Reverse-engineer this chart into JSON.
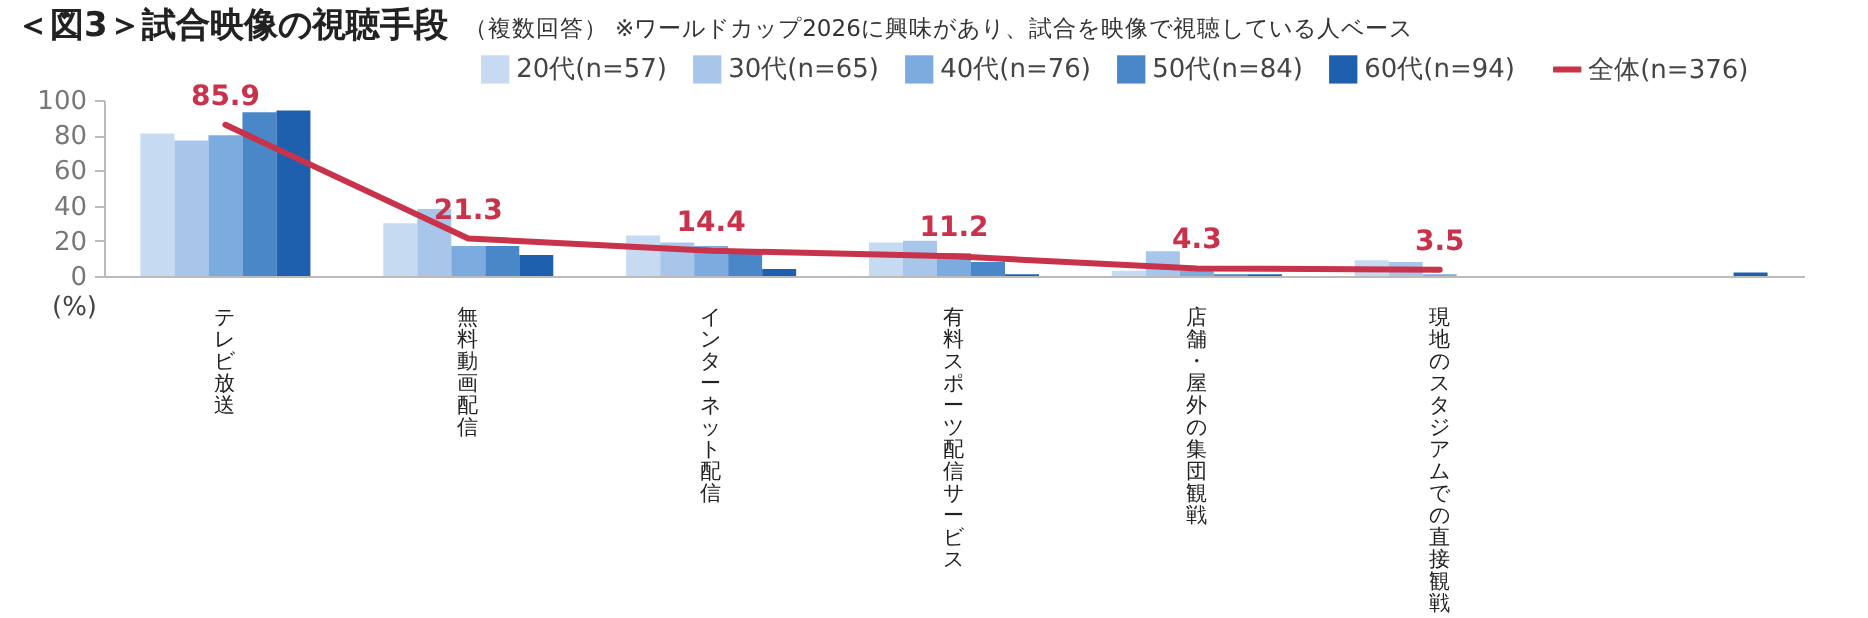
{
  "chart_data": {
    "type": "bar",
    "title": "＜図3＞試合映像の視聴手段",
    "subtitle": "（複数回答） ※ワールドカップ2026に興味があり、試合を映像で視聴している人ベース",
    "ylabel": "(%)",
    "categories": [
      "テレビ放送",
      "無料動画配信",
      "インターネット配信",
      "有料スポーツ配信サービス",
      "店舗・屋外の集団観戦",
      "現地のスタジアムでの直接観戦",
      null
    ],
    "series": [
      {
        "name": "20代(n=57)",
        "color": "#c6daf2",
        "values": [
          81,
          30,
          23,
          19,
          3,
          9,
          0
        ]
      },
      {
        "name": "30代(n=65)",
        "color": "#a8c5ea",
        "values": [
          77,
          38,
          19,
          20,
          14,
          8,
          0
        ]
      },
      {
        "name": "40代(n=76)",
        "color": "#7cacdf",
        "values": [
          80,
          17,
          17,
          13,
          3,
          1,
          0
        ]
      },
      {
        "name": "50代(n=84)",
        "color": "#4a87c9",
        "values": [
          93,
          17,
          14,
          8,
          1,
          0,
          0
        ]
      },
      {
        "name": "60代(n=94)",
        "color": "#1f60ae",
        "values": [
          94,
          12,
          4,
          1,
          1,
          0,
          2
        ]
      },
      {
        "name": "全体(n=376)",
        "type": "line",
        "color": "#c8324a",
        "values": [
          85.9,
          21.3,
          14.4,
          11.2,
          4.3,
          3.5,
          null
        ],
        "value_labels": [
          "85.9",
          "21.3",
          "14.4",
          "11.2",
          "4.3",
          "3.5",
          null
        ]
      }
    ],
    "ylim": [
      0,
      100
    ],
    "yticks": [
      0,
      20,
      40,
      60,
      80,
      100
    ],
    "legend": "top right"
  }
}
